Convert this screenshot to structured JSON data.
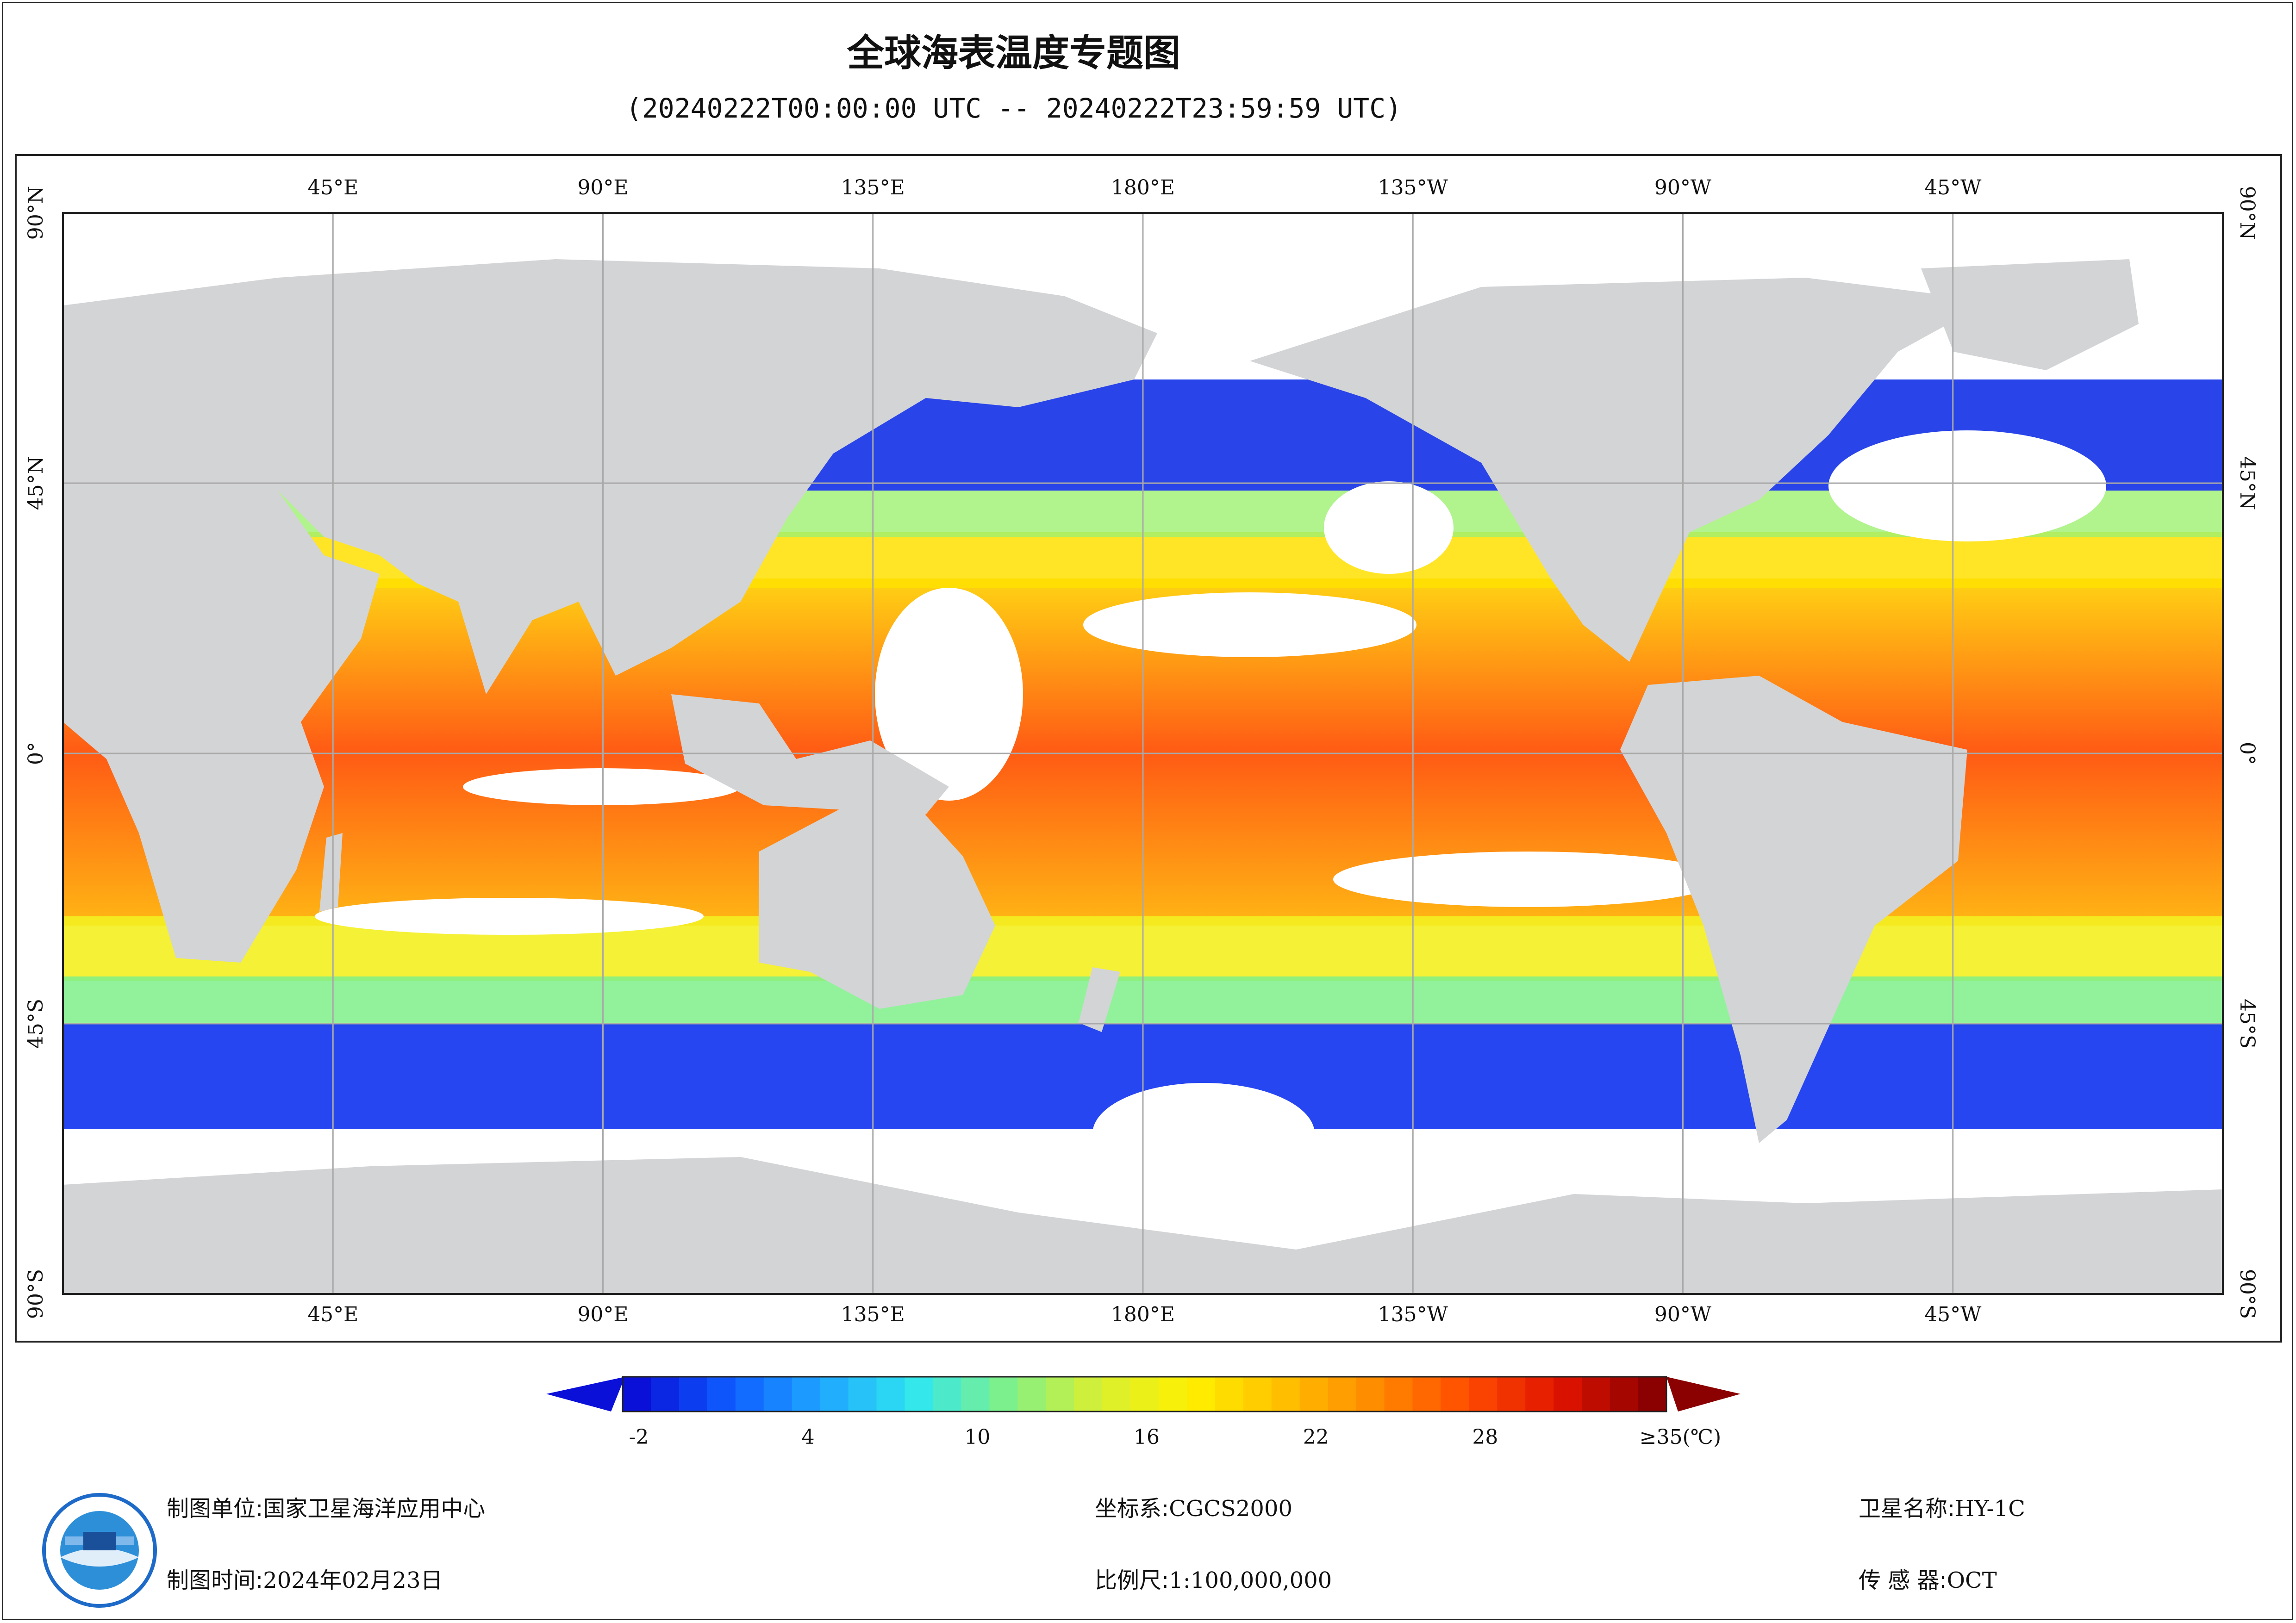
{
  "title": "全球海表温度专题图",
  "subtitle": "(20240222T00:00:00 UTC -- 20240222T23:59:59 UTC)",
  "map": {
    "longitude_labels": [
      "45°E",
      "90°E",
      "135°E",
      "180°E",
      "135°W",
      "90°W",
      "45°W"
    ],
    "longitude_values": [
      45,
      90,
      135,
      180,
      225,
      270,
      315
    ],
    "latitude_labels": [
      "90°N",
      "45°N",
      "0°",
      "45°S",
      "90°S"
    ],
    "latitude_values": [
      90,
      45,
      0,
      -45,
      -90
    ],
    "colors": {
      "land": "#d3d4d6",
      "no_data": "#ffffff",
      "grid": "#a9a9a9"
    }
  },
  "colorbar": {
    "tick_labels": [
      "-2",
      "4",
      "10",
      "16",
      "22",
      "28",
      "≥35(℃)"
    ],
    "tick_values": [
      -2,
      4,
      10,
      16,
      22,
      28,
      35
    ],
    "range": [
      -2,
      35
    ],
    "colors": [
      "#0a10d8",
      "#0e5cff",
      "#1fa6ff",
      "#2fe6f0",
      "#7ef08a",
      "#d8f032",
      "#fff000",
      "#ffc000",
      "#ff8a00",
      "#ff4c00",
      "#e01400",
      "#8b0000"
    ]
  },
  "footer": {
    "org_label": "制图单位:",
    "org_value": "国家卫星海洋应用中心",
    "time_label": "制图时间:",
    "time_value": "2024年02月23日",
    "crs_label": "坐标系:",
    "crs_value": "CGCS2000",
    "scale_label": "比例尺:",
    "scale_value": "1:100,000,000",
    "satellite_label": "卫星名称:",
    "satellite_value": "HY-1C",
    "sensor_label": "传 感 器:",
    "sensor_value": "OCT"
  }
}
